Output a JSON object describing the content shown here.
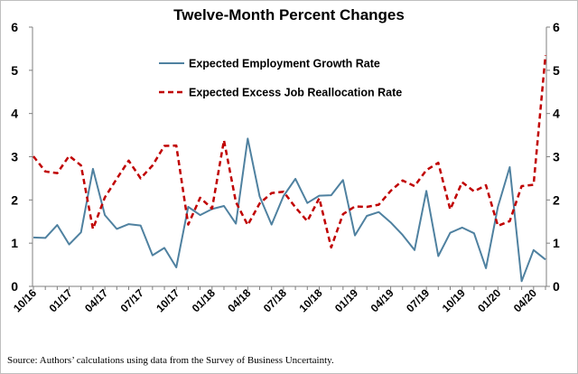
{
  "chart_data": {
    "type": "line",
    "title": "Twelve-Month Percent Changes",
    "xlabel": "",
    "ylabel": "",
    "ylim": [
      0,
      6
    ],
    "yticks": [
      0,
      1,
      2,
      3,
      4,
      5,
      6
    ],
    "legend_placement": "top-center",
    "grid": false,
    "x_tick_labels": [
      "10/16",
      "01/17",
      "04/17",
      "07/17",
      "10/17",
      "01/18",
      "04/18",
      "07/18",
      "10/18",
      "01/19",
      "04/19",
      "07/19",
      "10/19",
      "01/20",
      "04/20"
    ],
    "x": [
      "10/16",
      "11/16",
      "12/16",
      "01/17",
      "02/17",
      "03/17",
      "04/17",
      "05/17",
      "06/17",
      "07/17",
      "08/17",
      "09/17",
      "10/17",
      "11/17",
      "12/17",
      "01/18",
      "02/18",
      "03/18",
      "04/18",
      "05/18",
      "06/18",
      "07/18",
      "08/18",
      "09/18",
      "10/18",
      "11/18",
      "12/18",
      "01/19",
      "02/19",
      "03/19",
      "04/19",
      "05/19",
      "06/19",
      "07/19",
      "08/19",
      "09/19",
      "10/19",
      "11/19",
      "12/19",
      "01/20",
      "02/20",
      "03/20",
      "04/20",
      "05/20"
    ],
    "series": [
      {
        "name": "Expected Employment Growth Rate",
        "color": "#4f81a0",
        "style": "solid",
        "values": [
          1.13,
          1.12,
          1.42,
          0.97,
          1.25,
          2.72,
          1.65,
          1.33,
          1.44,
          1.41,
          0.72,
          0.89,
          0.44,
          1.84,
          1.65,
          1.79,
          1.86,
          1.45,
          3.42,
          2.08,
          1.43,
          2.09,
          2.49,
          1.93,
          2.1,
          2.11,
          2.46,
          1.18,
          1.63,
          1.72,
          1.48,
          1.19,
          0.84,
          2.21,
          0.7,
          1.24,
          1.36,
          1.23,
          0.42,
          1.84,
          2.76,
          0.12,
          0.84,
          0.62
        ]
      },
      {
        "name": "Expected Excess Job Reallocation Rate",
        "color": "#c00000",
        "style": "dashed",
        "values": [
          3.01,
          2.66,
          2.62,
          3.02,
          2.8,
          1.33,
          2.06,
          2.49,
          2.91,
          2.5,
          2.8,
          3.25,
          3.26,
          1.43,
          2.05,
          1.8,
          3.38,
          1.95,
          1.42,
          1.92,
          2.16,
          2.19,
          1.83,
          1.51,
          2.04,
          0.9,
          1.67,
          1.85,
          1.84,
          1.89,
          2.21,
          2.45,
          2.32,
          2.69,
          2.86,
          1.78,
          2.41,
          2.2,
          2.34,
          1.4,
          1.51,
          2.32,
          2.35,
          5.35
        ]
      }
    ]
  },
  "source_note": "Source: Authors’ calculations using data from the Survey of Business Uncertainty."
}
